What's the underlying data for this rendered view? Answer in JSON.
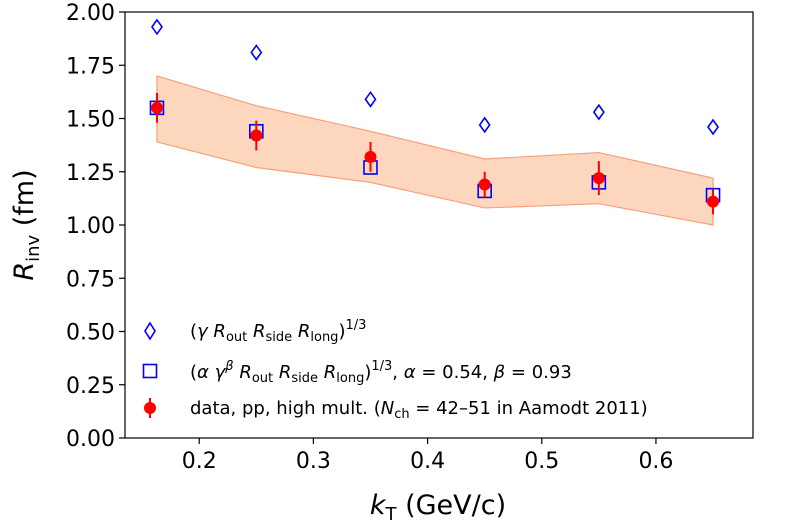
{
  "chart_data": {
    "type": "scatter",
    "xlabel": {
      "main": "k",
      "sub": "T",
      "unit": " (GeV/c)"
    },
    "ylabel": {
      "main": "R",
      "sub": "inv",
      "unit": " (fm)"
    },
    "xlim": [
      0.135,
      0.685
    ],
    "ylim": [
      0.0,
      2.0
    ],
    "xticks": [
      "0.2",
      "0.3",
      "0.4",
      "0.5",
      "0.6"
    ],
    "xtick_values": [
      0.2,
      0.3,
      0.4,
      0.5,
      0.6
    ],
    "yticks": [
      "0.00",
      "0.25",
      "0.50",
      "0.75",
      "1.00",
      "1.25",
      "1.50",
      "1.75",
      "2.00"
    ],
    "ytick_values": [
      0.0,
      0.25,
      0.5,
      0.75,
      1.0,
      1.25,
      1.5,
      1.75,
      2.0
    ],
    "band": {
      "x": [
        0.163,
        0.25,
        0.35,
        0.45,
        0.55,
        0.65
      ],
      "low": [
        1.39,
        1.27,
        1.2,
        1.08,
        1.1,
        1.0
      ],
      "high": [
        1.7,
        1.56,
        1.44,
        1.31,
        1.34,
        1.22
      ],
      "color": "#fdd7bd",
      "edge_color": "#f4a27e"
    },
    "series": [
      {
        "name": "(γ R_out R_side R_long)^1/3",
        "marker": "diamond",
        "color": "#0000ff",
        "x": [
          0.163,
          0.25,
          0.35,
          0.45,
          0.55,
          0.65
        ],
        "values": [
          1.93,
          1.81,
          1.59,
          1.47,
          1.53,
          1.46
        ]
      },
      {
        "name": "(α γ^β R_out R_side R_long)^1/3, α = 0.54, β = 0.93",
        "marker": "square",
        "color": "#0000ff",
        "x": [
          0.163,
          0.25,
          0.35,
          0.45,
          0.55,
          0.65
        ],
        "values": [
          1.55,
          1.44,
          1.27,
          1.16,
          1.2,
          1.14
        ]
      },
      {
        "name": "data, pp, high mult. (N_ch = 42–51 in Aamodt 2011)",
        "marker": "circle",
        "color": "#ff0000",
        "x": [
          0.163,
          0.25,
          0.35,
          0.45,
          0.55,
          0.65
        ],
        "values": [
          1.55,
          1.42,
          1.32,
          1.19,
          1.22,
          1.11
        ],
        "err": [
          0.07,
          0.07,
          0.07,
          0.06,
          0.08,
          0.06
        ]
      }
    ],
    "legend": {
      "placement": "lower-left",
      "entries": [
        {
          "parts": [
            "(",
            "γ",
            " ",
            "R",
            "out",
            " ",
            "R",
            "side",
            " ",
            "R",
            "long",
            ")",
            "1/3"
          ]
        },
        {
          "parts": [
            "(",
            "α",
            " ",
            "γ",
            "β",
            " ",
            "R",
            "out",
            " ",
            "R",
            "side",
            " ",
            "R",
            "long",
            ")",
            "1/3",
            ", ",
            "α",
            " = 0.54, ",
            "β",
            " = 0.93"
          ]
        },
        {
          "parts": [
            "data, pp, high mult. (",
            "N",
            "ch",
            " = 42–51 in Aamodt 2011)"
          ]
        }
      ]
    }
  }
}
